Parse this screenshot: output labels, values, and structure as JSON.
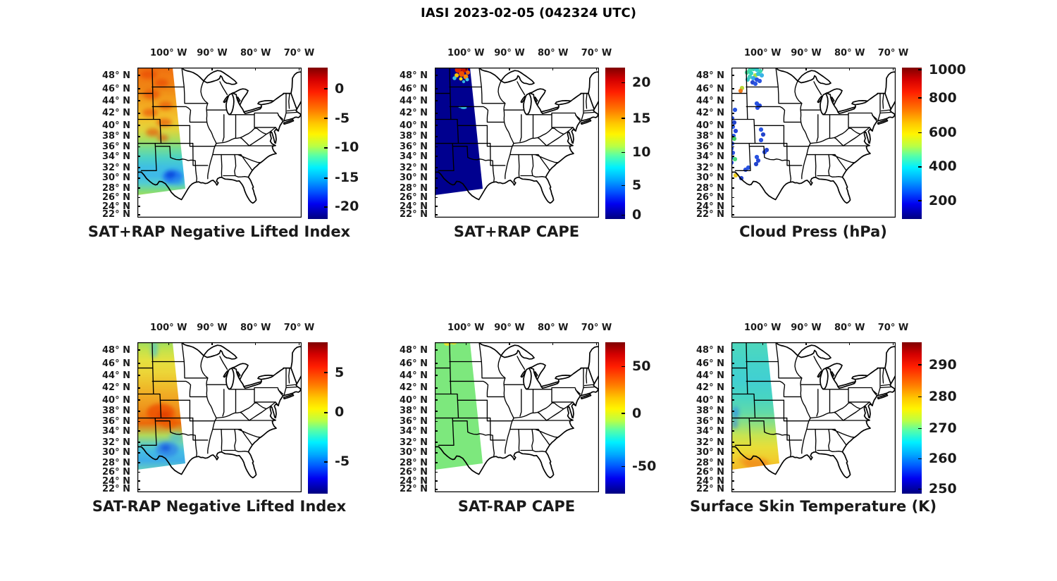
{
  "figure": {
    "title": "IASI 2023-02-05 (042324 UTC)"
  },
  "axes": {
    "lon_ticks": [
      {
        "label": "100° W",
        "f": 0.19
      },
      {
        "label": "90° W",
        "f": 0.455
      },
      {
        "label": "80° W",
        "f": 0.72
      },
      {
        "label": "70° W",
        "f": 0.985
      }
    ],
    "lat_ticks": [
      {
        "label": "48° N",
        "f": 0.052
      },
      {
        "label": "46° N",
        "f": 0.141
      },
      {
        "label": "44° N",
        "f": 0.221
      },
      {
        "label": "42° N",
        "f": 0.305
      },
      {
        "label": "40° N",
        "f": 0.385
      },
      {
        "label": "38° N",
        "f": 0.46
      },
      {
        "label": "36° N",
        "f": 0.53
      },
      {
        "label": "34° N",
        "f": 0.592
      },
      {
        "label": "32° N",
        "f": 0.667
      },
      {
        "label": "30° N",
        "f": 0.737
      },
      {
        "label": "28° N",
        "f": 0.803
      },
      {
        "label": "26° N",
        "f": 0.868
      },
      {
        "label": "24° N",
        "f": 0.925
      },
      {
        "label": "22° N",
        "f": 0.981
      }
    ]
  },
  "panels": [
    {
      "title": "SAT+RAP Negative Lifted Index",
      "colorbar": {
        "ticks": [
          {
            "label": "0",
            "f": 0.14
          },
          {
            "label": "-5",
            "f": 0.335
          },
          {
            "label": "-10",
            "f": 0.53
          },
          {
            "label": "-15",
            "f": 0.73
          },
          {
            "label": "-20",
            "f": 0.92
          }
        ]
      }
    },
    {
      "title": "SAT+RAP CAPE",
      "colorbar": {
        "ticks": [
          {
            "label": "20",
            "f": 0.1
          },
          {
            "label": "15",
            "f": 0.335
          },
          {
            "label": "10",
            "f": 0.56
          },
          {
            "label": "5",
            "f": 0.78
          },
          {
            "label": "0",
            "f": 0.975
          }
        ]
      }
    },
    {
      "title": "Cloud Press (hPa)",
      "colorbar": {
        "ticks": [
          {
            "label": "1000",
            "f": 0.015
          },
          {
            "label": "800",
            "f": 0.2
          },
          {
            "label": "600",
            "f": 0.43
          },
          {
            "label": "400",
            "f": 0.655
          },
          {
            "label": "200",
            "f": 0.88
          }
        ]
      }
    },
    {
      "title": "SAT-RAP Negative Lifted Index",
      "colorbar": {
        "ticks": [
          {
            "label": "5",
            "f": 0.2
          },
          {
            "label": "0",
            "f": 0.465
          },
          {
            "label": "-5",
            "f": 0.79
          }
        ]
      }
    },
    {
      "title": "SAT-RAP CAPE",
      "colorbar": {
        "ticks": [
          {
            "label": "50",
            "f": 0.16
          },
          {
            "label": "0",
            "f": 0.47
          },
          {
            "label": "-50",
            "f": 0.82
          }
        ]
      }
    },
    {
      "title": "Surface Skin Temperature (K)",
      "colorbar": {
        "ticks": [
          {
            "label": "290",
            "f": 0.15
          },
          {
            "label": "280",
            "f": 0.36
          },
          {
            "label": "270",
            "f": 0.57
          },
          {
            "label": "260",
            "f": 0.77
          },
          {
            "label": "250",
            "f": 0.97
          }
        ]
      }
    }
  ],
  "chart_data": [
    {
      "type": "heatmap",
      "panel": "SAT+RAP Negative Lifted Index",
      "colormap": "jet",
      "colorbar_ticks": [
        0,
        -5,
        -10,
        -15,
        -20
      ],
      "lon_range": [
        -107,
        -70
      ],
      "lat_range": [
        22,
        49
      ],
      "summary": "IASI swath along western edge (~107W-99W): lifted index ~0 to -5 (orange/red) from 36N-49N, -5 to -10 (yellow-green) 32-36N, minimum near -18 (blue) around 30N/102W, ~-9 (green) at 26-28N"
    },
    {
      "type": "heatmap",
      "panel": "SAT+RAP CAPE",
      "colormap": "jet",
      "colorbar_ticks": [
        20,
        15,
        10,
        5,
        0
      ],
      "lon_range": [
        -107,
        -70
      ],
      "lat_range": [
        22,
        49
      ],
      "summary": "CAPE ~0 (dark blue) across whole swath except spots >20 near 48-49N/100-102W and a small ~8 patch near 43N/101W"
    },
    {
      "type": "scatter",
      "panel": "Cloud Press (hPa)",
      "colormap": "jet",
      "colorbar_ticks": [
        1000,
        800,
        600,
        400,
        200
      ],
      "lon_range": [
        -107,
        -70
      ],
      "lat_range": [
        22,
        49
      ],
      "points_format": "[map_x 0-233, map_y 0-213, color, approx_hPa]",
      "points": [
        [
          26,
          4,
          "#3fd8a8",
          470
        ],
        [
          31,
          2,
          "#38d2b4",
          460
        ],
        [
          36,
          3,
          "#32cbd2",
          430
        ],
        [
          41,
          5,
          "#3ad8ae",
          465
        ],
        [
          28,
          8,
          "#30d0c0",
          445
        ],
        [
          34,
          11,
          "#a6e04c",
          560
        ],
        [
          38,
          9,
          "#33c2d8",
          420
        ],
        [
          43,
          11,
          "#3ab2e6",
          390
        ],
        [
          26,
          13,
          "#40d0b8",
          455
        ],
        [
          31,
          15,
          "#35a8ea",
          375
        ],
        [
          36,
          17,
          "#2a52dd",
          250
        ],
        [
          40,
          19,
          "#2c55e2",
          255
        ],
        [
          30,
          21,
          "#2747d0",
          235
        ],
        [
          34,
          23,
          "#2a55e2",
          255
        ],
        [
          22,
          7,
          "#44d89a",
          490
        ],
        [
          23,
          17,
          "#38c8c8",
          435
        ],
        [
          15,
          29,
          "#b8d838",
          590
        ],
        [
          13,
          33,
          "#f07818",
          790
        ],
        [
          36,
          51,
          "#2753e0",
          255
        ],
        [
          40,
          54,
          "#2346d8",
          240
        ],
        [
          37,
          57,
          "#2a50e8",
          252
        ],
        [
          5,
          60,
          "#2753e0",
          255
        ],
        [
          1,
          72,
          "#2a50e0",
          250
        ],
        [
          4,
          78,
          "#2244cc",
          230
        ],
        [
          2,
          84,
          "#3060e8",
          265
        ],
        [
          6,
          90,
          "#2244dd",
          232
        ],
        [
          3,
          97,
          "#2856e0",
          256
        ],
        [
          4,
          101,
          "#44cc66",
          520
        ],
        [
          1,
          108,
          "#2a50dd",
          250
        ],
        [
          0,
          115,
          "#2244cc",
          230
        ],
        [
          2,
          121,
          "#2a50e0",
          250
        ],
        [
          0,
          128,
          "#2753e0",
          255
        ],
        [
          0,
          135,
          "#2a50ee",
          252
        ],
        [
          42,
          88,
          "#2753e0",
          255
        ],
        [
          45,
          95,
          "#2244cc",
          230
        ],
        [
          42,
          103,
          "#2a50e0",
          250
        ],
        [
          50,
          117,
          "#2343cc",
          232
        ],
        [
          47,
          120,
          "#2a50e0",
          250
        ],
        [
          36,
          127,
          "#2753e0",
          255
        ],
        [
          38,
          132,
          "#2a48d8",
          245
        ],
        [
          35,
          137,
          "#2244cc",
          230
        ],
        [
          5,
          130,
          "#4ad87a",
          530
        ],
        [
          24,
          142,
          "#2753e0",
          255
        ],
        [
          20,
          145,
          "#2a50e0",
          250
        ],
        [
          14,
          157,
          "#2244cc",
          230
        ],
        [
          6,
          153,
          "#f0d020",
          660
        ]
      ]
    },
    {
      "type": "heatmap",
      "panel": "SAT-RAP Negative Lifted Index",
      "colormap": "jet",
      "colorbar_ticks": [
        5,
        0,
        -5
      ],
      "lon_range": [
        -107,
        -70
      ],
      "lat_range": [
        22,
        49
      ],
      "summary": "Difference mostly 0 to +3 (yellow-green) north of 41N, +4 to +7 (orange/red) blob 37-40N, -3 to -6 (cyan/blue) 28-33N, ~0 green near swath edges"
    },
    {
      "type": "heatmap",
      "panel": "SAT-RAP CAPE",
      "colormap": "jet",
      "colorbar_ticks": [
        50,
        0,
        -50
      ],
      "lon_range": [
        -107,
        -70
      ],
      "lat_range": [
        22,
        49
      ],
      "summary": "Difference ~0 (uniform light green) over entire swath; tiny positive (yellow) patch at northern edge ~49N/103W"
    },
    {
      "type": "heatmap",
      "panel": "Surface Skin Temperature (K)",
      "colormap": "jet",
      "colorbar_ticks": [
        290,
        280,
        270,
        260,
        250
      ],
      "lon_range": [
        -107,
        -70
      ],
      "lat_range": [
        22,
        49
      ],
      "summary": "~266-272K (cyan/teal) north of 36N with ~258K (blue) pockets near 38-40N/106W, warming southward to 278-285K (yellow/orange) over southern Texas 26-31N"
    }
  ]
}
